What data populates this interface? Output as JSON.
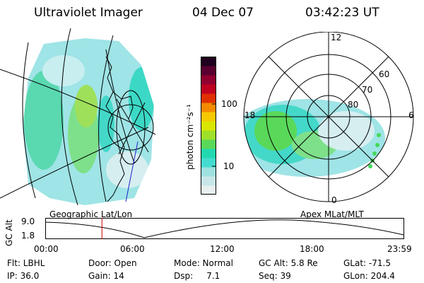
{
  "header": {
    "instrument": "Ultraviolet Imager",
    "date": "04 Dec 07",
    "time": "03:42:23 UT"
  },
  "geo_panel": {
    "caption": "Geographic Lat/Lon"
  },
  "polar_panel": {
    "caption": "Apex MLat/MLT",
    "mlt_labels": [
      "12",
      "18",
      "6",
      "0"
    ],
    "lat_labels": [
      "60",
      "70",
      "80"
    ]
  },
  "colorbar": {
    "unit_label": "photon cm⁻²s⁻¹",
    "tick_labels": [
      "100",
      "10"
    ],
    "colors": [
      "#e8f0f0",
      "#c8e6e8",
      "#9fe0e0",
      "#44dcd0",
      "#22d8b0",
      "#5ad85a",
      "#9ee02a",
      "#d8e600",
      "#f5c800",
      "#f58a00",
      "#e03000",
      "#c00020",
      "#900030",
      "#5a0030",
      "#200020"
    ]
  },
  "timeline": {
    "y_axis_label": "GC Alt",
    "y_ticks": [
      "9.0",
      "1.8"
    ],
    "x_ticks": [
      "00:00",
      "06:00",
      "12:00",
      "18:00",
      "23:59"
    ],
    "current_time_fraction": 0.158
  },
  "status": {
    "row1": [
      {
        "label": "Flt: LBHL"
      },
      {
        "label": "Door: Open"
      },
      {
        "label": "Mode: Normal"
      },
      {
        "label": "GC Alt: 5.8 Re"
      },
      {
        "label": "GLat: -71.5"
      }
    ],
    "row2": [
      {
        "label": "IP: 36.0"
      },
      {
        "label": "Gain: 14"
      },
      {
        "label": "Dsp:     7.1"
      },
      {
        "label": "Seq: 39"
      },
      {
        "label": "GLon: 204.4"
      }
    ]
  }
}
